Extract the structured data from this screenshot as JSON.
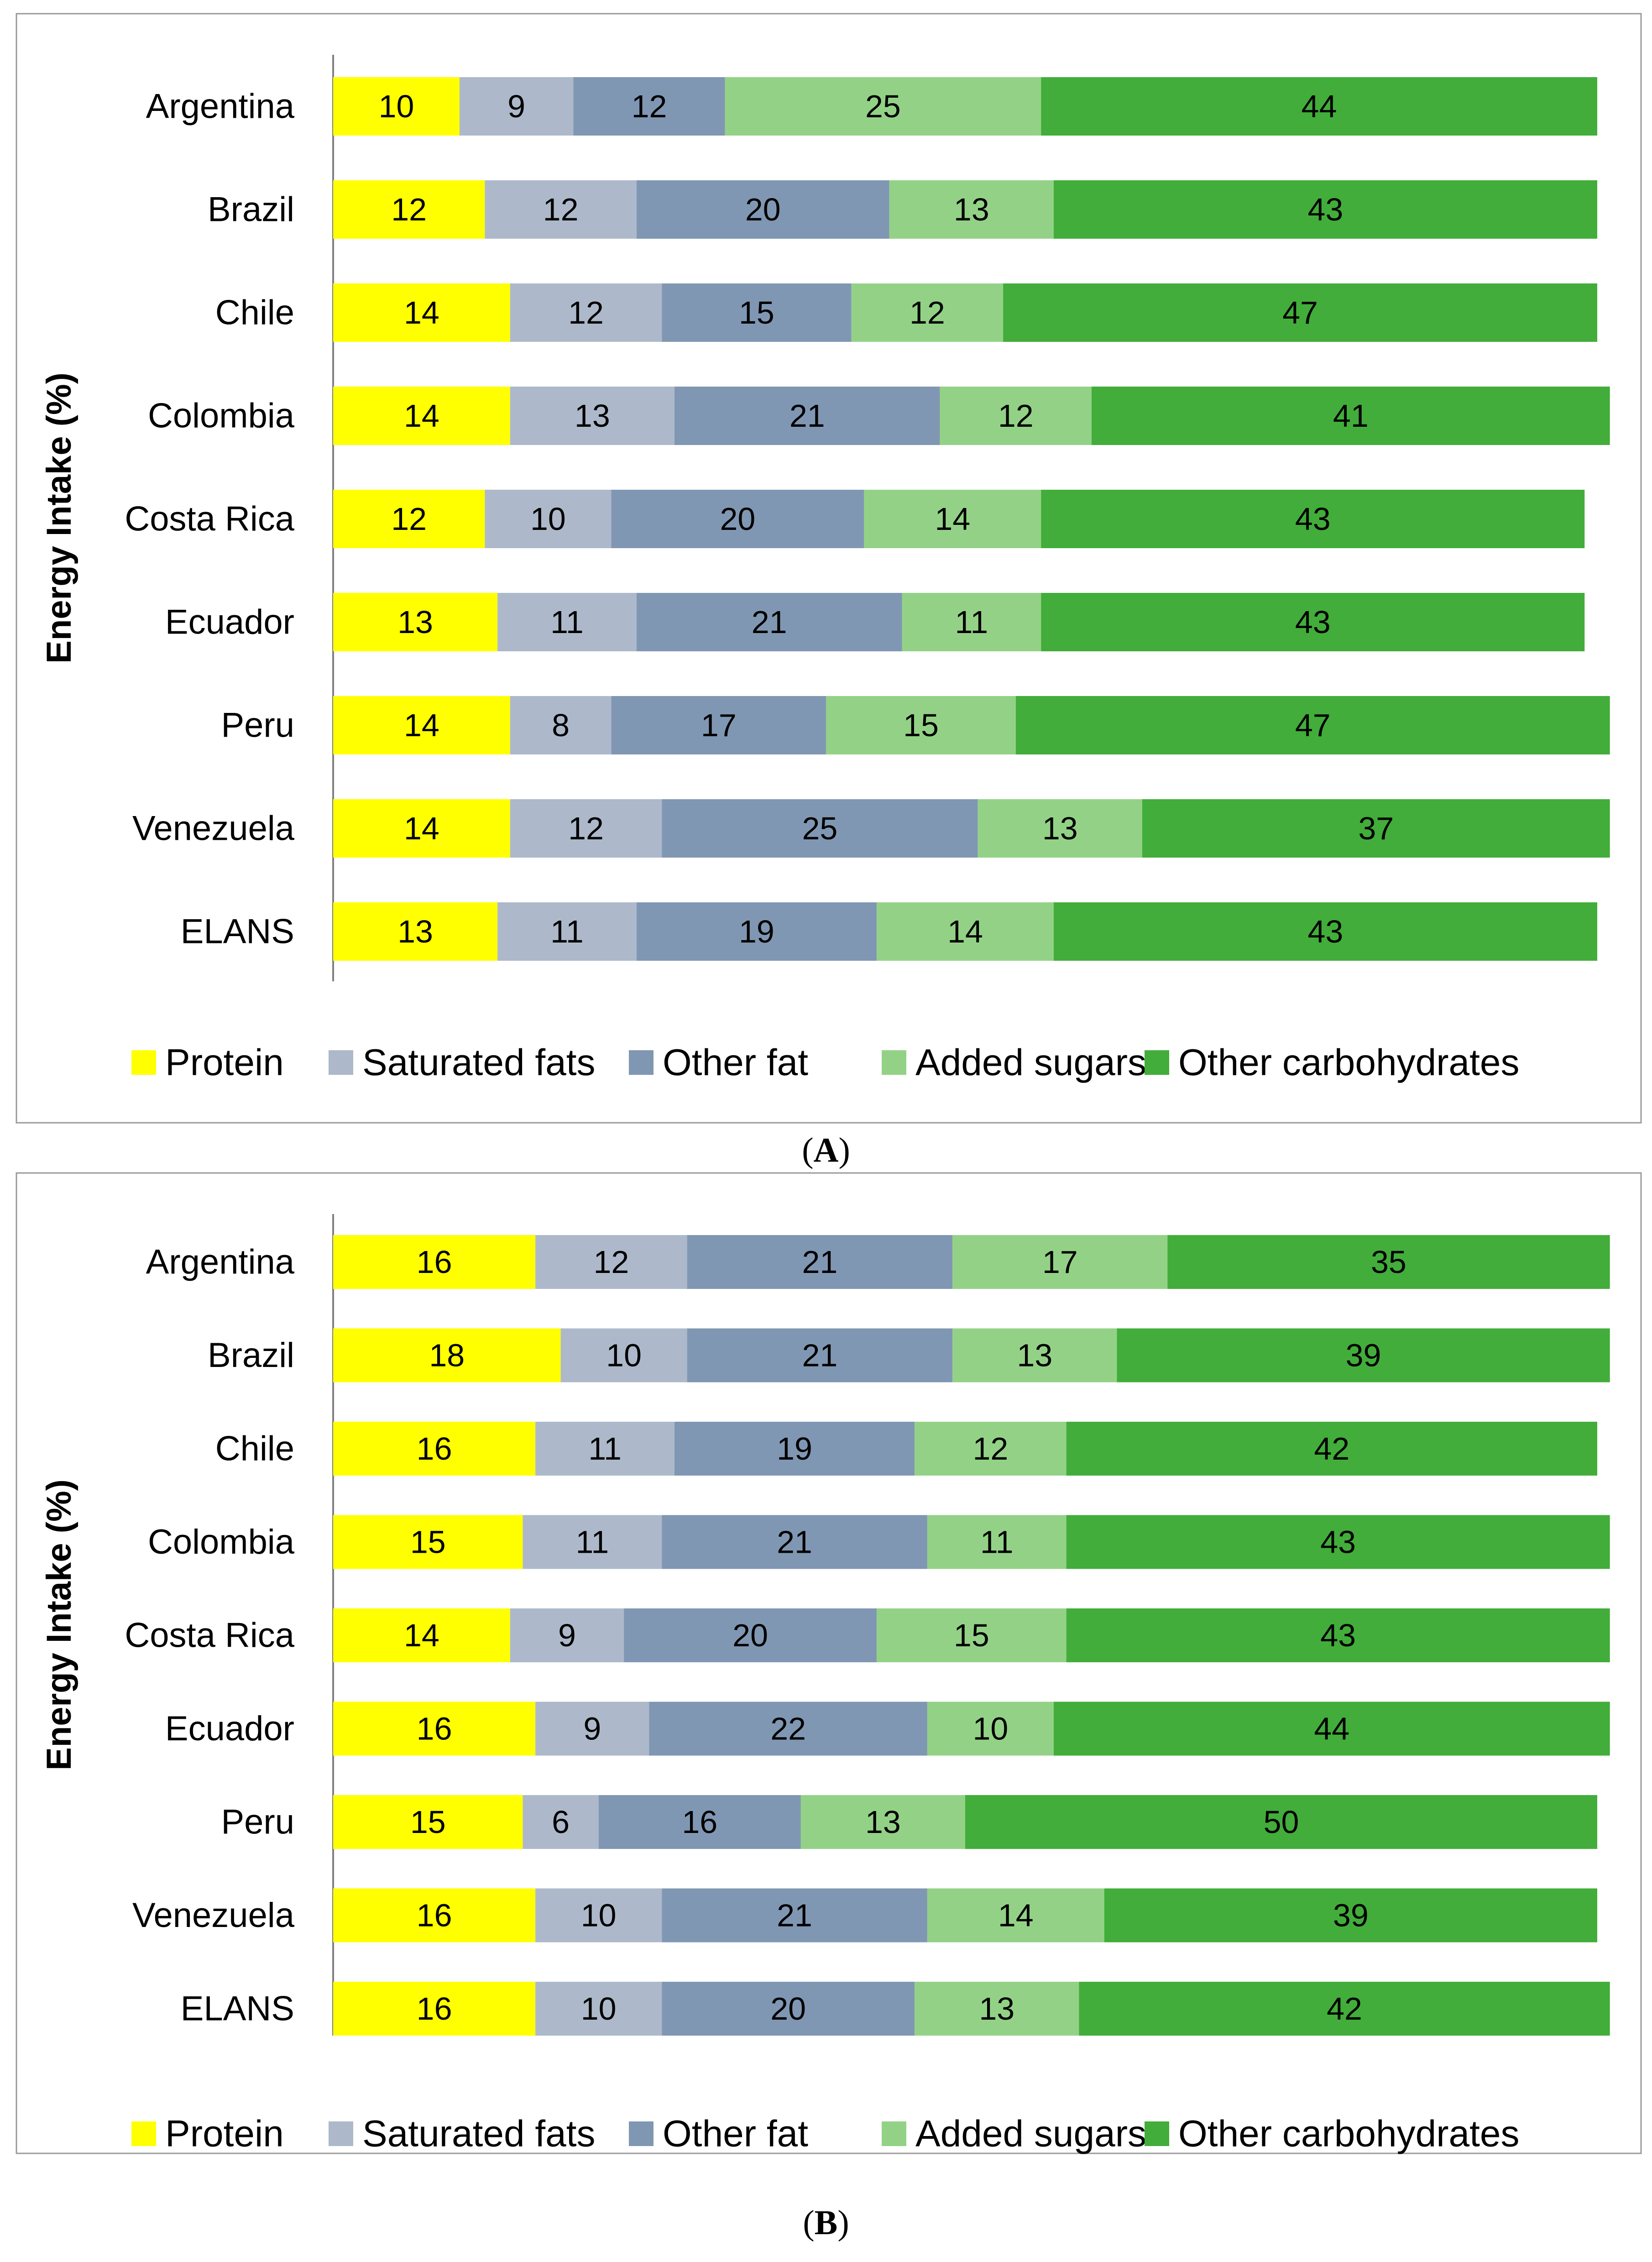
{
  "chart_data": [
    {
      "type": "bar",
      "orientation": "horizontal",
      "stacked": true,
      "panel_label": "A",
      "ylabel": "Energy Intake (%)",
      "xlabel": "",
      "xlim": [
        0,
        100
      ],
      "grid": false,
      "legend_position": "bottom",
      "categories": [
        "Argentina",
        "Brazil",
        "Chile",
        "Colombia",
        "Costa Rica",
        "Ecuador",
        "Peru",
        "Venezuela",
        "ELANS"
      ],
      "series": [
        {
          "name": "Protein",
          "color": "#ffff00",
          "values": [
            10,
            12,
            14,
            14,
            12,
            13,
            14,
            14,
            13
          ]
        },
        {
          "name": "Saturated fats",
          "color": "#adb9ca",
          "values": [
            9,
            12,
            12,
            13,
            10,
            11,
            8,
            12,
            11
          ]
        },
        {
          "name": "Other fat",
          "color": "#8097b3",
          "values": [
            12,
            20,
            15,
            21,
            20,
            21,
            17,
            25,
            19
          ]
        },
        {
          "name": "Added sugars",
          "color": "#93d286",
          "values": [
            25,
            13,
            12,
            12,
            14,
            11,
            15,
            13,
            14
          ]
        },
        {
          "name": "Other carbohydrates",
          "color": "#42ad3a",
          "values": [
            44,
            43,
            47,
            41,
            43,
            43,
            47,
            37,
            43
          ]
        }
      ]
    },
    {
      "type": "bar",
      "orientation": "horizontal",
      "stacked": true,
      "panel_label": "B",
      "ylabel": "Energy Intake (%)",
      "xlabel": "",
      "xlim": [
        0,
        100
      ],
      "grid": false,
      "legend_position": "bottom",
      "categories": [
        "Argentina",
        "Brazil",
        "Chile",
        "Colombia",
        "Costa Rica",
        "Ecuador",
        "Peru",
        "Venezuela",
        "ELANS"
      ],
      "series": [
        {
          "name": "Protein",
          "color": "#ffff00",
          "values": [
            16,
            18,
            16,
            15,
            14,
            16,
            15,
            16,
            16
          ]
        },
        {
          "name": "Saturated fats",
          "color": "#adb9ca",
          "values": [
            12,
            10,
            11,
            11,
            9,
            9,
            6,
            10,
            10
          ]
        },
        {
          "name": "Other fat",
          "color": "#8097b3",
          "values": [
            21,
            21,
            19,
            21,
            20,
            22,
            16,
            21,
            20
          ]
        },
        {
          "name": "Added sugars",
          "color": "#93d286",
          "values": [
            17,
            13,
            12,
            11,
            15,
            10,
            13,
            14,
            13
          ]
        },
        {
          "name": "Other carbohydrates",
          "color": "#42ad3a",
          "values": [
            35,
            39,
            42,
            43,
            43,
            44,
            50,
            39,
            42
          ]
        }
      ]
    }
  ]
}
